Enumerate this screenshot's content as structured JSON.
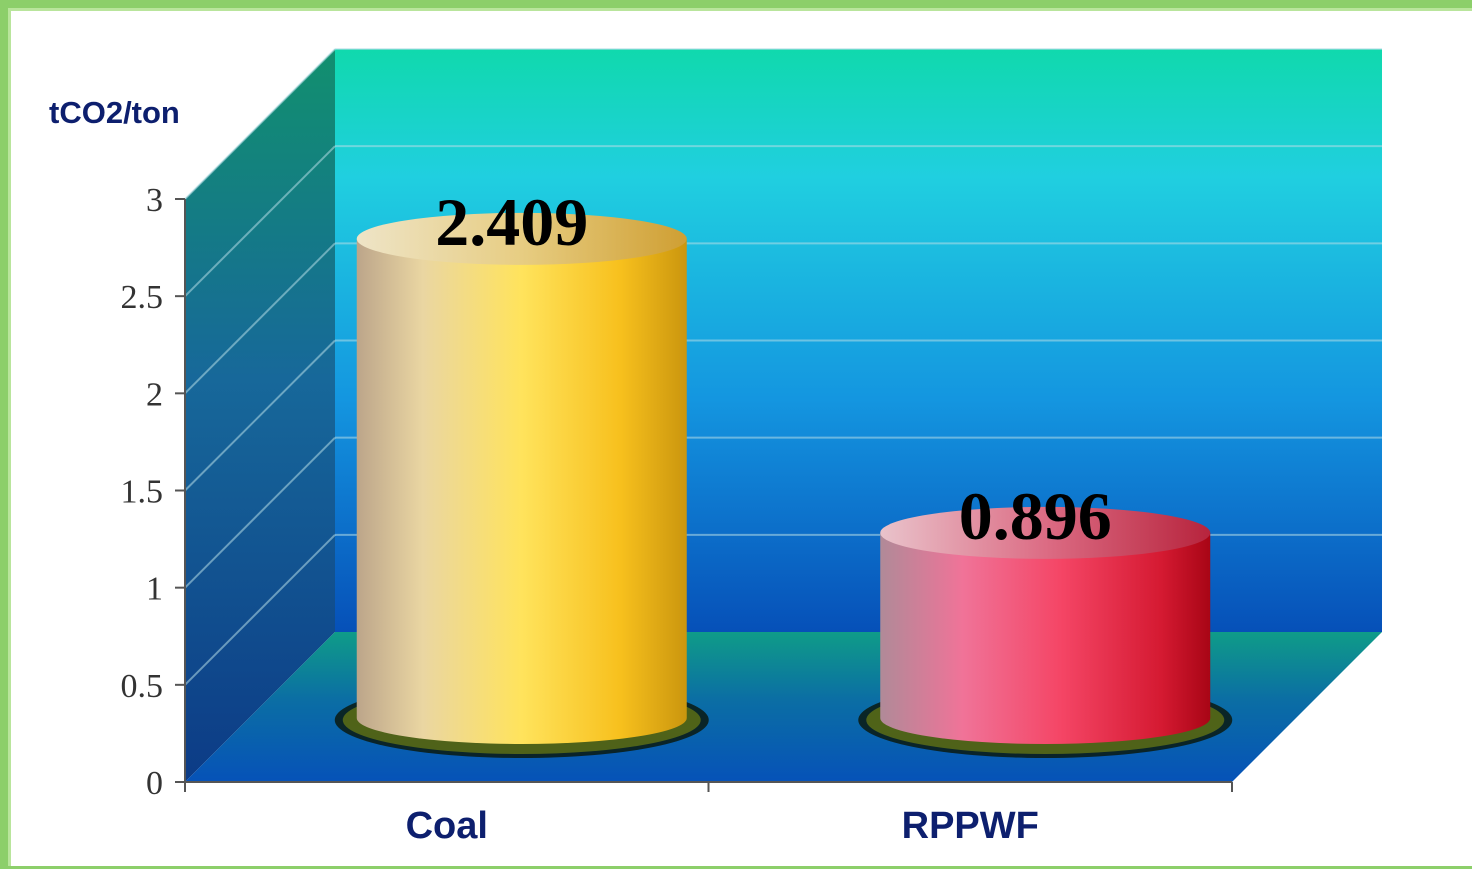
{
  "chart_data": {
    "type": "bar",
    "title": "",
    "ylabel": "tCO2/ton",
    "xlabel": "",
    "categories": [
      "Coal",
      "RPPWF"
    ],
    "values": [
      2.409,
      0.896
    ],
    "data_labels": [
      "2.409",
      "0.896"
    ],
    "ylim": [
      0,
      3
    ],
    "yticks": [
      0,
      0.5,
      1,
      1.5,
      2,
      2.5,
      3
    ],
    "ytick_labels": [
      "0",
      "0.5",
      "1",
      "1.5",
      "2",
      "2.5",
      "3"
    ],
    "grid": true,
    "style": "3d-cylinder",
    "bar_colors": [
      "#f6c21c",
      "#e0223f"
    ],
    "background_colors": {
      "wall_top": "#12d8ad",
      "wall_bottom": "#0857bd",
      "floor": "#0e8e86"
    }
  }
}
